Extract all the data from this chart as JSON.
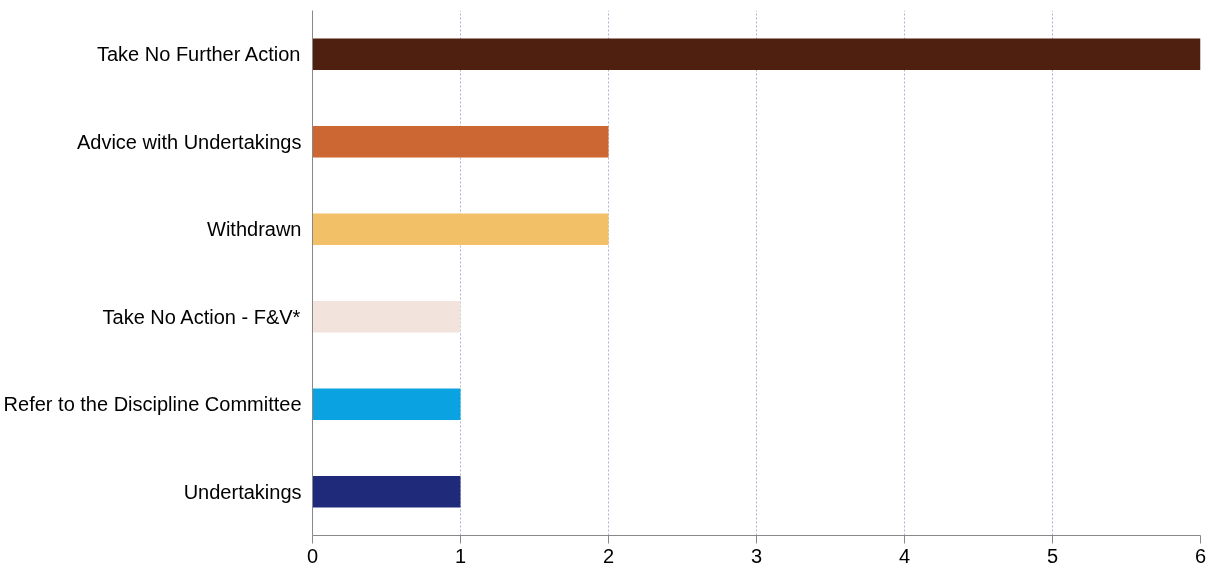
{
  "chart_data": {
    "type": "bar",
    "orientation": "horizontal",
    "categories": [
      "Take No Further Action",
      "Advice with Undertakings",
      "Withdrawn",
      "Take No Action - F&V*",
      "Refer to the Discipline Committee",
      "Undertakings"
    ],
    "values": [
      6,
      2,
      2,
      1,
      1,
      1
    ],
    "colors": [
      "#4f1f0f",
      "#cc6633",
      "#f2c066",
      "#f2e4dc",
      "#0aa2e0",
      "#1f2a7a"
    ],
    "xlim": [
      0,
      6
    ],
    "xticks": [
      0,
      1,
      2,
      3,
      4,
      5,
      6
    ],
    "grid": "x"
  }
}
